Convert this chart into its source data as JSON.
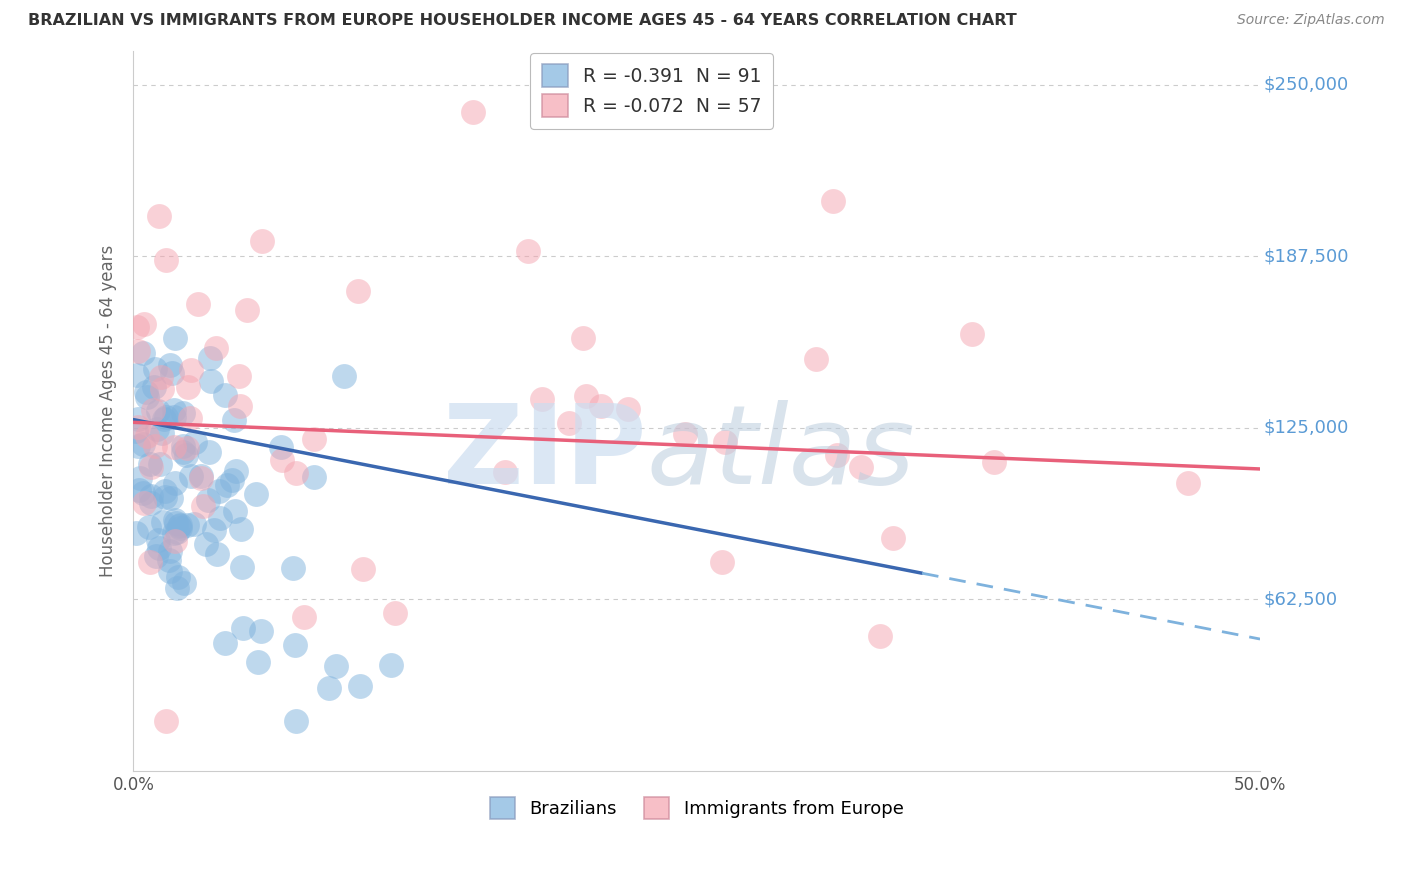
{
  "title": "BRAZILIAN VS IMMIGRANTS FROM EUROPE HOUSEHOLDER INCOME AGES 45 - 64 YEARS CORRELATION CHART",
  "source": "Source: ZipAtlas.com",
  "ylabel": "Householder Income Ages 45 - 64 years",
  "xlim": [
    0.0,
    0.5
  ],
  "ylim": [
    0,
    262500
  ],
  "yticks": [
    0,
    62500,
    125000,
    187500,
    250000
  ],
  "ytick_labels": [
    "",
    "$62,500",
    "$125,000",
    "$187,500",
    "$250,000"
  ],
  "xticks": [
    0.0,
    0.1,
    0.2,
    0.3,
    0.4,
    0.5
  ],
  "xtick_labels": [
    "0.0%",
    "",
    "",
    "",
    "",
    "50.0%"
  ],
  "legend_r1": "R = -0.391  N = 91",
  "legend_r2": "R = -0.072  N = 57",
  "blue_color": "#7EB2DD",
  "pink_color": "#F4A4B0",
  "trend_blue": "#3A67B0",
  "trend_pink": "#E8607A",
  "yaxis_color": "#5B9BD5",
  "title_color": "#333333",
  "source_color": "#888888",
  "watermark_zip_color": "#DDEEFF",
  "watermark_atlas_color": "#BBCCDD",
  "grid_color": "#CCCCCC",
  "R_braz": -0.391,
  "N_braz": 91,
  "R_immig": -0.072,
  "N_immig": 57,
  "trend_braz_x0": 0.0,
  "trend_braz_y0": 128000,
  "trend_braz_x1": 0.35,
  "trend_braz_y1": 72000,
  "trend_braz_dash_x0": 0.35,
  "trend_braz_dash_x1": 0.5,
  "trend_immig_x0": 0.0,
  "trend_immig_y0": 127000,
  "trend_immig_x1": 0.5,
  "trend_immig_y1": 110000
}
